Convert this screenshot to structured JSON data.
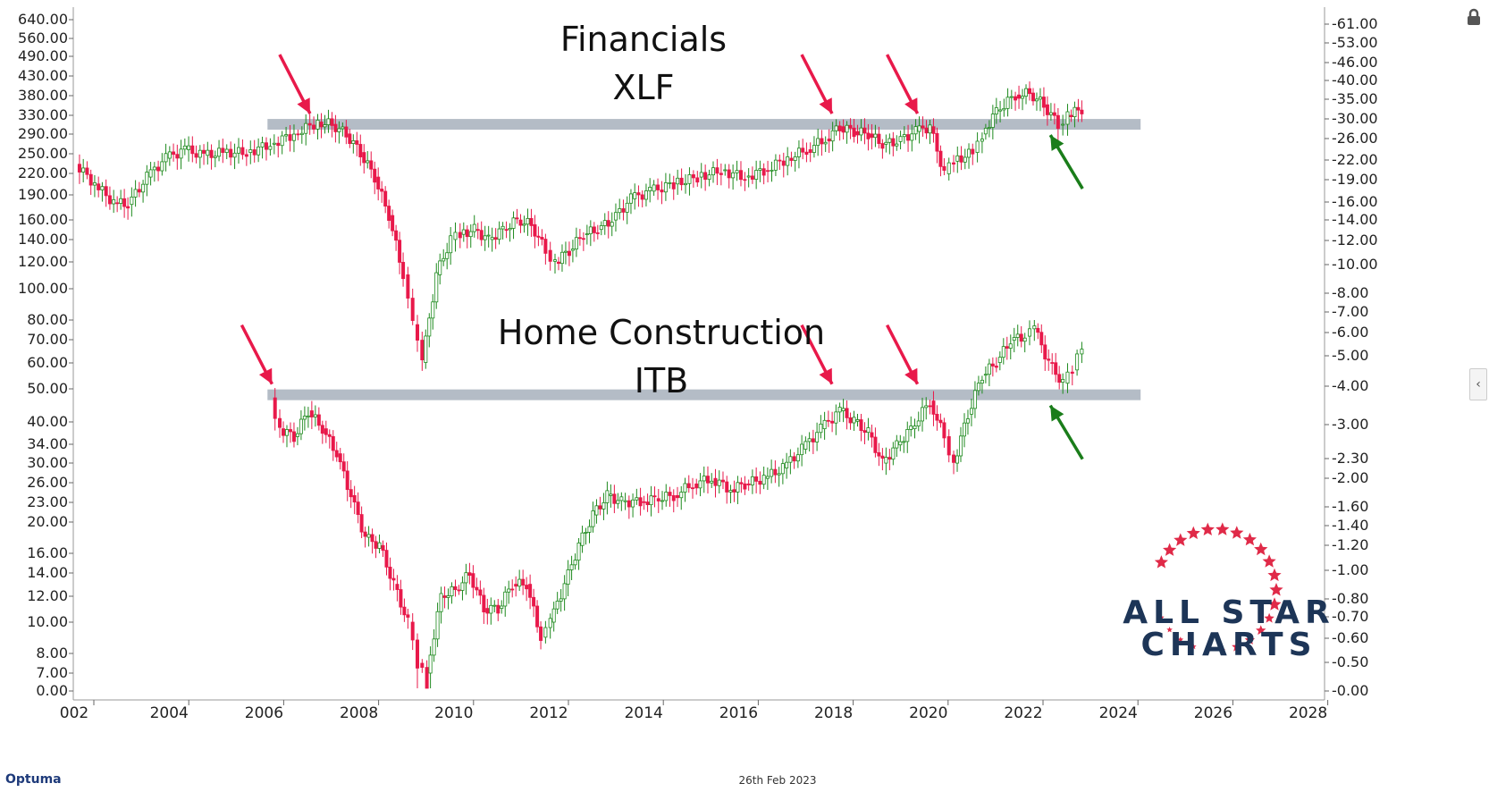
{
  "titles": {
    "top_line1": "Financials",
    "top_line2": "XLF",
    "bottom_line1": "Home Construction",
    "bottom_line2": "ITB"
  },
  "footer": {
    "date": "26th Feb 2023",
    "brand": "Optuma"
  },
  "logo": {
    "line1": "ALL STAR",
    "line2": "CHARTS"
  },
  "colors": {
    "up": "#1e8a1e",
    "down": "#e8194a",
    "band": "#b4bcc6",
    "arrow_red": "#e8194a",
    "arrow_green": "#1a7d1a",
    "logo_blue": "#1d3557",
    "star_red": "#e02a48"
  },
  "icons": [
    "lock-icon",
    "collapse-arrow-icon",
    "star-icon"
  ],
  "chart_data": {
    "type": "candlestick",
    "x_axis": {
      "ticks": [
        "002",
        "2004",
        "2006",
        "2008",
        "2010",
        "2012",
        "2014",
        "2016",
        "2018",
        "2020",
        "2022",
        "2024",
        "2026",
        "2028"
      ]
    },
    "left_axis": {
      "ticks": [
        "640.00",
        "560.00",
        "490.00",
        "430.00",
        "380.00",
        "330.00",
        "290.00",
        "250.00",
        "220.00",
        "190.00",
        "160.00",
        "140.00",
        "120.00",
        "100.00",
        "80.00",
        "70.00",
        "60.00",
        "50.00",
        "40.00",
        "34.00",
        "30.00",
        "26.00",
        "23.00",
        "20.00",
        "16.00",
        "14.00",
        "12.00",
        "10.00",
        "8.00",
        "7.00",
        "0.00"
      ]
    },
    "right_axis": {
      "ticks": [
        "61.00",
        "53.00",
        "46.00",
        "40.00",
        "35.00",
        "30.00",
        "26.00",
        "22.00",
        "19.00",
        "16.00",
        "14.00",
        "12.00",
        "10.00",
        "8.00",
        "7.00",
        "6.00",
        "5.00",
        "4.00",
        "3.00",
        "2.30",
        "2.00",
        "1.60",
        "1.40",
        "1.20",
        "1.00",
        "0.80",
        "0.70",
        "0.60",
        "0.50",
        "0.00"
      ]
    },
    "series": [
      {
        "name": "Financials XLF",
        "support_band": 310,
        "band_x_range": [
          2005.0,
          2024.0
        ],
        "arrows_down": [
          2006.8,
          2017.8,
          2019.6
        ],
        "arrow_up": [
          2022.4
        ],
        "points": [
          [
            2001.9,
            235
          ],
          [
            2002.3,
            205
          ],
          [
            2002.7,
            180
          ],
          [
            2003.0,
            178
          ],
          [
            2003.4,
            215
          ],
          [
            2003.8,
            245
          ],
          [
            2004.2,
            260
          ],
          [
            2004.6,
            250
          ],
          [
            2005.0,
            255
          ],
          [
            2005.5,
            255
          ],
          [
            2006.0,
            270
          ],
          [
            2006.5,
            290
          ],
          [
            2007.0,
            315
          ],
          [
            2007.3,
            310
          ],
          [
            2007.6,
            290
          ],
          [
            2007.9,
            255
          ],
          [
            2008.2,
            215
          ],
          [
            2008.5,
            165
          ],
          [
            2008.8,
            110
          ],
          [
            2009.0,
            78
          ],
          [
            2009.2,
            60
          ],
          [
            2009.5,
            110
          ],
          [
            2009.8,
            140
          ],
          [
            2010.0,
            145
          ],
          [
            2010.3,
            150
          ],
          [
            2010.6,
            140
          ],
          [
            2010.9,
            150
          ],
          [
            2011.2,
            160
          ],
          [
            2011.5,
            155
          ],
          [
            2011.8,
            130
          ],
          [
            2012.0,
            120
          ],
          [
            2012.3,
            130
          ],
          [
            2012.6,
            145
          ],
          [
            2012.9,
            150
          ],
          [
            2013.2,
            160
          ],
          [
            2013.6,
            185
          ],
          [
            2014.0,
            195
          ],
          [
            2014.5,
            205
          ],
          [
            2015.0,
            215
          ],
          [
            2015.5,
            225
          ],
          [
            2016.0,
            215
          ],
          [
            2016.4,
            225
          ],
          [
            2016.9,
            245
          ],
          [
            2017.3,
            260
          ],
          [
            2017.7,
            280
          ],
          [
            2018.0,
            305
          ],
          [
            2018.3,
            295
          ],
          [
            2018.6,
            290
          ],
          [
            2018.9,
            270
          ],
          [
            2019.2,
            275
          ],
          [
            2019.6,
            295
          ],
          [
            2019.9,
            305
          ],
          [
            2020.2,
            220
          ],
          [
            2020.4,
            240
          ],
          [
            2020.8,
            255
          ],
          [
            2021.0,
            290
          ],
          [
            2021.3,
            340
          ],
          [
            2021.7,
            380
          ],
          [
            2022.0,
            385
          ],
          [
            2022.3,
            355
          ],
          [
            2022.6,
            310
          ],
          [
            2022.8,
            330
          ],
          [
            2023.1,
            345
          ]
        ]
      },
      {
        "name": "Home Construction ITB",
        "support_band": 48,
        "band_x_range": [
          2005.0,
          2024.0
        ],
        "arrows_down": [
          2006.0,
          2017.8,
          2019.6
        ],
        "arrow_up": [
          2022.4
        ],
        "points": [
          [
            2006.0,
            47
          ],
          [
            2006.2,
            38
          ],
          [
            2006.5,
            36
          ],
          [
            2006.8,
            43
          ],
          [
            2007.1,
            38
          ],
          [
            2007.4,
            32
          ],
          [
            2007.7,
            24
          ],
          [
            2008.0,
            18
          ],
          [
            2008.3,
            17
          ],
          [
            2008.6,
            13
          ],
          [
            2008.9,
            10
          ],
          [
            2009.1,
            7.5
          ],
          [
            2009.3,
            7
          ],
          [
            2009.6,
            12
          ],
          [
            2009.9,
            12.5
          ],
          [
            2010.2,
            14
          ],
          [
            2010.5,
            11
          ],
          [
            2010.8,
            11
          ],
          [
            2011.1,
            13
          ],
          [
            2011.4,
            13
          ],
          [
            2011.7,
            9
          ],
          [
            2011.9,
            10
          ],
          [
            2012.2,
            13
          ],
          [
            2012.5,
            17
          ],
          [
            2012.8,
            21
          ],
          [
            2013.1,
            24
          ],
          [
            2013.4,
            23
          ],
          [
            2013.8,
            23
          ],
          [
            2014.1,
            23.5
          ],
          [
            2014.5,
            24
          ],
          [
            2014.9,
            26
          ],
          [
            2015.3,
            27
          ],
          [
            2015.7,
            25
          ],
          [
            2016.0,
            26
          ],
          [
            2016.4,
            27
          ],
          [
            2016.8,
            29
          ],
          [
            2017.2,
            33
          ],
          [
            2017.6,
            38
          ],
          [
            2018.0,
            43
          ],
          [
            2018.3,
            40
          ],
          [
            2018.6,
            37
          ],
          [
            2018.9,
            30
          ],
          [
            2019.2,
            34
          ],
          [
            2019.5,
            38
          ],
          [
            2019.9,
            46
          ],
          [
            2020.2,
            36
          ],
          [
            2020.4,
            30
          ],
          [
            2020.7,
            42
          ],
          [
            2021.0,
            55
          ],
          [
            2021.3,
            60
          ],
          [
            2021.6,
            70
          ],
          [
            2021.9,
            72
          ],
          [
            2022.1,
            76
          ],
          [
            2022.4,
            60
          ],
          [
            2022.7,
            52
          ],
          [
            2022.9,
            57
          ],
          [
            2023.1,
            68
          ]
        ]
      }
    ]
  }
}
